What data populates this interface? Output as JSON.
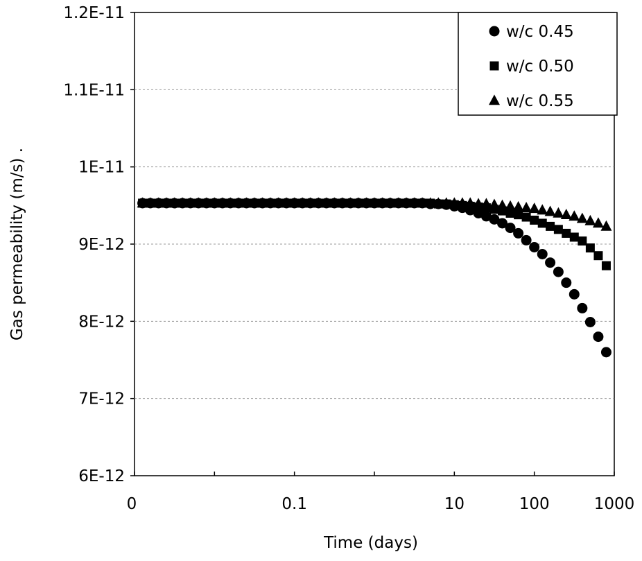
{
  "chart_data": {
    "type": "scatter",
    "title": "",
    "xlabel": "Time (days)",
    "ylabel": "Gas permeability (m/s) .",
    "x_scale": "log",
    "xlim": [
      0.001,
      1000
    ],
    "ylim": [
      6e-12,
      1.2e-11
    ],
    "x_tick_values": [
      0.001,
      0.1,
      10,
      100,
      1000
    ],
    "x_tick_labels": [
      "0",
      "0.1",
      "10",
      "100",
      "1000"
    ],
    "x_minor_ticks": [
      0.01,
      1
    ],
    "y_tick_values": [
      6e-12,
      7e-12,
      8e-12,
      9e-12,
      1e-11,
      1.1e-11,
      1.2e-11
    ],
    "y_tick_labels": [
      "6E-12",
      "7E-12",
      "8E-12",
      "9E-12",
      "1E-11",
      "1.1E-11",
      "1.2E-11"
    ],
    "grid": "horizontal dashed",
    "legend_position": "top-right",
    "x": [
      0.00126,
      0.00158,
      0.002,
      0.00251,
      0.00316,
      0.00398,
      0.00501,
      0.00631,
      0.00794,
      0.01,
      0.0126,
      0.0158,
      0.02,
      0.0251,
      0.0316,
      0.0398,
      0.0501,
      0.0631,
      0.0794,
      0.1,
      0.126,
      0.158,
      0.2,
      0.251,
      0.316,
      0.398,
      0.501,
      0.631,
      0.794,
      1,
      1.26,
      1.58,
      2,
      2.51,
      3.16,
      3.98,
      5.01,
      6.31,
      7.94,
      10,
      12.6,
      15.8,
      20,
      25.1,
      31.6,
      39.8,
      50.1,
      63.1,
      79.4,
      100,
      126,
      158,
      200,
      251,
      316,
      398,
      501,
      631,
      794
    ],
    "series": [
      {
        "name": "w/c 0.45",
        "marker": "circle",
        "values": [
          9.53e-12,
          9.53e-12,
          9.53e-12,
          9.53e-12,
          9.53e-12,
          9.53e-12,
          9.53e-12,
          9.53e-12,
          9.53e-12,
          9.53e-12,
          9.53e-12,
          9.53e-12,
          9.53e-12,
          9.53e-12,
          9.53e-12,
          9.53e-12,
          9.53e-12,
          9.53e-12,
          9.53e-12,
          9.53e-12,
          9.53e-12,
          9.53e-12,
          9.53e-12,
          9.53e-12,
          9.53e-12,
          9.53e-12,
          9.53e-12,
          9.53e-12,
          9.53e-12,
          9.53e-12,
          9.53e-12,
          9.53e-12,
          9.53e-12,
          9.53e-12,
          9.53e-12,
          9.53e-12,
          9.52e-12,
          9.52e-12,
          9.51e-12,
          9.49e-12,
          9.47e-12,
          9.44e-12,
          9.4e-12,
          9.36e-12,
          9.32e-12,
          9.27e-12,
          9.21e-12,
          9.14e-12,
          9.05e-12,
          8.96e-12,
          8.87e-12,
          8.76e-12,
          8.64e-12,
          8.5e-12,
          8.35e-12,
          8.17e-12,
          7.99e-12,
          7.8e-12,
          7.6e-12
        ]
      },
      {
        "name": "w/c 0.50",
        "marker": "square",
        "values": [
          9.53e-12,
          9.53e-12,
          9.53e-12,
          9.53e-12,
          9.53e-12,
          9.53e-12,
          9.53e-12,
          9.53e-12,
          9.53e-12,
          9.53e-12,
          9.53e-12,
          9.53e-12,
          9.53e-12,
          9.53e-12,
          9.53e-12,
          9.53e-12,
          9.53e-12,
          9.53e-12,
          9.53e-12,
          9.53e-12,
          9.53e-12,
          9.53e-12,
          9.53e-12,
          9.53e-12,
          9.53e-12,
          9.53e-12,
          9.53e-12,
          9.53e-12,
          9.53e-12,
          9.53e-12,
          9.53e-12,
          9.53e-12,
          9.53e-12,
          9.53e-12,
          9.53e-12,
          9.53e-12,
          9.53e-12,
          9.52e-12,
          9.52e-12,
          9.51e-12,
          9.5e-12,
          9.49e-12,
          9.48e-12,
          9.47e-12,
          9.45e-12,
          9.43e-12,
          9.4e-12,
          9.38e-12,
          9.35e-12,
          9.31e-12,
          9.27e-12,
          9.23e-12,
          9.19e-12,
          9.14e-12,
          9.09e-12,
          9.04e-12,
          8.95e-12,
          8.85e-12,
          8.72e-12
        ]
      },
      {
        "name": "w/c 0.55",
        "marker": "triangle",
        "values": [
          9.53e-12,
          9.53e-12,
          9.53e-12,
          9.53e-12,
          9.53e-12,
          9.53e-12,
          9.53e-12,
          9.53e-12,
          9.53e-12,
          9.53e-12,
          9.53e-12,
          9.53e-12,
          9.53e-12,
          9.53e-12,
          9.53e-12,
          9.53e-12,
          9.53e-12,
          9.53e-12,
          9.53e-12,
          9.53e-12,
          9.53e-12,
          9.53e-12,
          9.53e-12,
          9.53e-12,
          9.53e-12,
          9.53e-12,
          9.53e-12,
          9.53e-12,
          9.53e-12,
          9.53e-12,
          9.53e-12,
          9.53e-12,
          9.53e-12,
          9.53e-12,
          9.53e-12,
          9.53e-12,
          9.53e-12,
          9.53e-12,
          9.53e-12,
          9.53e-12,
          9.53e-12,
          9.53e-12,
          9.52e-12,
          9.52e-12,
          9.51e-12,
          9.5e-12,
          9.49e-12,
          9.48e-12,
          9.47e-12,
          9.46e-12,
          9.44e-12,
          9.42e-12,
          9.4e-12,
          9.38e-12,
          9.36e-12,
          9.33e-12,
          9.3e-12,
          9.27e-12,
          9.23e-12
        ]
      }
    ]
  }
}
